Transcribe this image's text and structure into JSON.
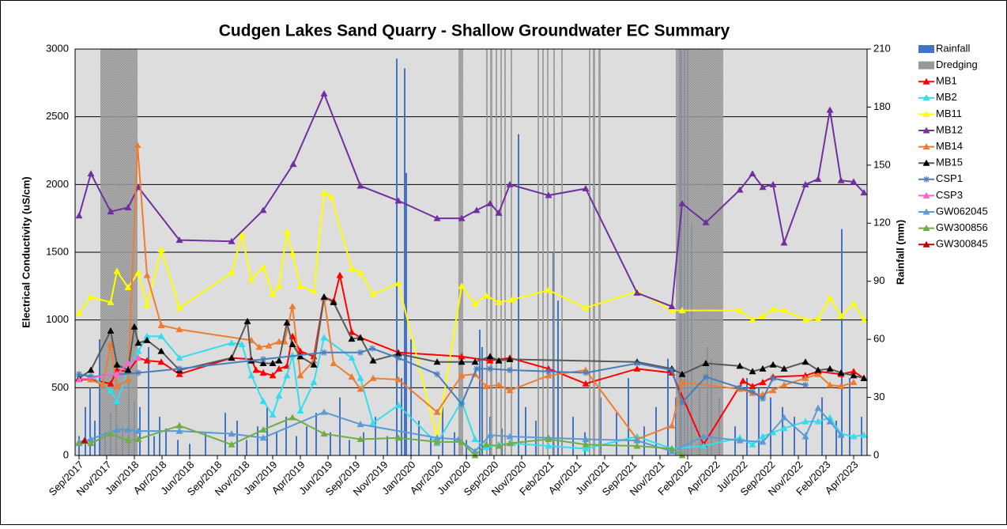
{
  "chart_data": {
    "type": "line",
    "title": "Cudgen Lakes Sand Quarry - Shallow Groundwater EC Summary",
    "y_label": "Electrical Conductivity (uS/cm)",
    "y2_label": "Rainfall (mm)",
    "xlim": [
      -5,
      997
    ],
    "xticks": [
      {
        "value": 0,
        "label": "Sep/2017"
      },
      {
        "value": 35,
        "label": "Nov/2017"
      },
      {
        "value": 70,
        "label": "Jan/2018"
      },
      {
        "value": 105,
        "label": "Apr/2018"
      },
      {
        "value": 140,
        "label": "Jun/2018"
      },
      {
        "value": 175,
        "label": "Sep/2018"
      },
      {
        "value": 210,
        "label": "Nov/2018"
      },
      {
        "value": 245,
        "label": "Jan/2019"
      },
      {
        "value": 280,
        "label": "Apr/2019"
      },
      {
        "value": 315,
        "label": "Jun/2019"
      },
      {
        "value": 350,
        "label": "Sep/2019"
      },
      {
        "value": 385,
        "label": "Nov/2019"
      },
      {
        "value": 420,
        "label": "Jan/2020"
      },
      {
        "value": 455,
        "label": "Apr/2020"
      },
      {
        "value": 490,
        "label": "Jun/2020"
      },
      {
        "value": 525,
        "label": "Sep/2020"
      },
      {
        "value": 560,
        "label": "Nov/2020"
      },
      {
        "value": 595,
        "label": "Feb/2021"
      },
      {
        "value": 630,
        "label": "Apr/2021"
      },
      {
        "value": 665,
        "label": "Jun/2021"
      },
      {
        "value": 700,
        "label": "Sep/2021"
      },
      {
        "value": 735,
        "label": "Nov/2021"
      },
      {
        "value": 770,
        "label": "Feb/2022"
      },
      {
        "value": 805,
        "label": "Apr/2022"
      },
      {
        "value": 840,
        "label": "Jul/2022"
      },
      {
        "value": 875,
        "label": "Sep/2022"
      },
      {
        "value": 910,
        "label": "Nov/2022"
      },
      {
        "value": 945,
        "label": "Feb/2023"
      },
      {
        "value": 980,
        "label": "Apr/2023"
      }
    ],
    "ylim": [
      0,
      3000
    ],
    "yticks": [
      0,
      500,
      1000,
      1500,
      2000,
      2500,
      3000
    ],
    "y2lim": [
      0,
      210
    ],
    "y2ticks": [
      0,
      30,
      60,
      90,
      120,
      150,
      180,
      210
    ],
    "grid": true,
    "series": [
      {
        "name": "Rainfall",
        "type": "bar",
        "axis": "y2",
        "color": "#4472c4",
        "x": [
          0,
          8,
          14,
          20,
          26,
          33,
          40,
          47,
          55,
          63,
          70,
          77,
          88,
          95,
          102,
          110,
          125,
          140,
          160,
          185,
          200,
          212,
          226,
          238,
          250,
          262,
          275,
          288,
          300,
          318,
          330,
          342,
          360,
          375,
          390,
          402,
          408,
          412,
          414,
          420,
          430,
          445,
          460,
          475,
          490,
          507,
          510,
          520,
          535,
          556,
          565,
          578,
          600,
          606,
          611,
          625,
          640,
          660,
          680,
          695,
          715,
          730,
          745,
          755,
          760,
          762,
          766,
          770,
          775,
          785,
          795,
          800,
          810,
          830,
          845,
          860,
          875,
          890,
          905,
          920,
          940,
          958,
          965,
          975,
          990
        ],
        "values": [
          10,
          25,
          35,
          18,
          60,
          12,
          22,
          30,
          15,
          40,
          28,
          25,
          56,
          10,
          20,
          14,
          8,
          6,
          12,
          22,
          18,
          8,
          15,
          25,
          12,
          20,
          10,
          15,
          22,
          12,
          30,
          8,
          12,
          20,
          10,
          205,
          40,
          200,
          146,
          60,
          18,
          10,
          25,
          12,
          8,
          65,
          56,
          20,
          14,
          166,
          25,
          18,
          105,
          80,
          66,
          20,
          12,
          30,
          22,
          40,
          15,
          25,
          50,
          30,
          210,
          210,
          210,
          210,
          120,
          35,
          56,
          50,
          30,
          15,
          40,
          35,
          30,
          25,
          20,
          12,
          30,
          18,
          117,
          40,
          20
        ]
      },
      {
        "name": "Dredging",
        "type": "span",
        "color": "#9a9a9a",
        "spans": [
          [
            27,
            74
          ],
          [
            480,
            486
          ],
          [
            515,
            517
          ],
          [
            520,
            523
          ],
          [
            527,
            529
          ],
          [
            533,
            535
          ],
          [
            538,
            540
          ],
          [
            546,
            548
          ],
          [
            580,
            582
          ],
          [
            586,
            588
          ],
          [
            592,
            594
          ],
          [
            600,
            602
          ],
          [
            610,
            612
          ],
          [
            645,
            647
          ],
          [
            650,
            653
          ],
          [
            657,
            660
          ],
          [
            755,
            815
          ]
        ]
      },
      {
        "name": "MB1",
        "color": "#ff0000",
        "marker": "triangle",
        "x": [
          0,
          15,
          40,
          48,
          62,
          75,
          86,
          104,
          127,
          193,
          218,
          224,
          233,
          245,
          253,
          263,
          270,
          280,
          297,
          310,
          322,
          330,
          345,
          356,
          404,
          484,
          520,
          545,
          594,
          641,
          706,
          750,
          790,
          840,
          852,
          865,
          878,
          919,
          935,
          964,
          980,
          993
        ],
        "values": [
          560,
          560,
          530,
          630,
          620,
          720,
          700,
          690,
          600,
          720,
          710,
          630,
          610,
          590,
          640,
          660,
          880,
          770,
          730,
          1170,
          1140,
          1330,
          910,
          870,
          760,
          730,
          700,
          720,
          640,
          530,
          640,
          610,
          80,
          550,
          510,
          540,
          580,
          590,
          620,
          600,
          620,
          570
        ]
      },
      {
        "name": "MB2",
        "color": "#33ddee",
        "marker": "triangle",
        "x": [
          0,
          15,
          40,
          48,
          62,
          75,
          86,
          104,
          127,
          193,
          206,
          218,
          233,
          245,
          253,
          263,
          270,
          280,
          297,
          310,
          345,
          356,
          372,
          404,
          453,
          484,
          501,
          515,
          531,
          548,
          594,
          641,
          706,
          750,
          790,
          836,
          852,
          865,
          878,
          892,
          919,
          935,
          950,
          964,
          980,
          993
        ],
        "values": [
          600,
          590,
          480,
          400,
          630,
          770,
          880,
          880,
          720,
          830,
          820,
          590,
          400,
          300,
          440,
          590,
          740,
          330,
          540,
          870,
          720,
          570,
          240,
          370,
          90,
          400,
          120,
          60,
          80,
          90,
          70,
          50,
          140,
          50,
          70,
          130,
          80,
          140,
          170,
          200,
          250,
          250,
          280,
          160,
          140,
          150
        ]
      },
      {
        "name": "MB11",
        "color": "#ffff00",
        "marker": "triangle",
        "x": [
          0,
          15,
          40,
          48,
          62,
          75,
          86,
          104,
          127,
          193,
          206,
          218,
          233,
          245,
          253,
          263,
          270,
          280,
          297,
          310,
          319,
          345,
          356,
          372,
          404,
          453,
          484,
          501,
          515,
          531,
          548,
          594,
          641,
          706,
          750,
          763,
          836,
          852,
          865,
          878,
          892,
          919,
          935,
          950,
          964,
          980,
          993
        ],
        "values": [
          1050,
          1170,
          1130,
          1360,
          1240,
          1350,
          1110,
          1520,
          1090,
          1350,
          1630,
          1300,
          1390,
          1190,
          1250,
          1650,
          1490,
          1250,
          1210,
          1940,
          1910,
          1380,
          1350,
          1190,
          1270,
          130,
          1250,
          1120,
          1180,
          1130,
          1150,
          1220,
          1090,
          1210,
          1070,
          1070,
          1070,
          1000,
          1030,
          1080,
          1070,
          1000,
          1010,
          1160,
          1030,
          1120,
          1000
        ]
      },
      {
        "name": "MB12",
        "color": "#7030a0",
        "marker": "triangle",
        "x": [
          0,
          15,
          40,
          62,
          75,
          127,
          193,
          233,
          271,
          310,
          356,
          404,
          453,
          484,
          503,
          520,
          531,
          545,
          594,
          641,
          706,
          750,
          763,
          793,
          836,
          852,
          865,
          878,
          892,
          919,
          935,
          950,
          964,
          980,
          993
        ],
        "values": [
          1770,
          2080,
          1800,
          1830,
          1980,
          1590,
          1580,
          1810,
          2150,
          2670,
          1990,
          1880,
          1750,
          1750,
          1810,
          1860,
          1790,
          2000,
          1920,
          1970,
          1200,
          1100,
          1860,
          1720,
          1960,
          2080,
          1980,
          2000,
          1570,
          2000,
          2040,
          2550,
          2030,
          2020,
          1940
        ]
      },
      {
        "name": "MB14",
        "color": "#ed7d31",
        "marker": "triangle",
        "x": [
          0,
          15,
          30,
          40,
          48,
          62,
          74,
          86,
          104,
          127,
          218,
          228,
          240,
          253,
          260,
          270,
          280,
          297,
          310,
          322,
          345,
          356,
          372,
          404,
          453,
          484,
          501,
          515,
          531,
          545,
          594,
          641,
          706,
          750,
          763,
          836,
          852,
          865,
          878,
          892,
          919,
          935,
          950,
          964,
          980
        ],
        "values": [
          570,
          560,
          520,
          820,
          510,
          560,
          2290,
          1330,
          960,
          930,
          850,
          800,
          810,
          840,
          840,
          1100,
          590,
          700,
          1160,
          680,
          580,
          490,
          570,
          560,
          320,
          590,
          600,
          510,
          520,
          480,
          590,
          630,
          120,
          220,
          540,
          490,
          460,
          450,
          480,
          520,
          570,
          600,
          520,
          510,
          540
        ]
      },
      {
        "name": "MB15",
        "color": "#595959",
        "marker_color": "#000000",
        "marker": "triangle",
        "x": [
          0,
          15,
          40,
          48,
          62,
          70,
          75,
          86,
          104,
          127,
          193,
          213,
          218,
          233,
          245,
          253,
          263,
          270,
          280,
          297,
          310,
          322,
          345,
          356,
          372,
          404,
          453,
          484,
          501,
          520,
          531,
          545,
          706,
          750,
          763,
          793,
          836,
          852,
          865,
          878,
          892,
          919,
          935,
          950,
          964,
          980,
          993
        ],
        "values": [
          570,
          630,
          920,
          670,
          630,
          950,
          830,
          850,
          770,
          630,
          720,
          990,
          700,
          680,
          680,
          700,
          980,
          820,
          730,
          670,
          1170,
          1130,
          860,
          870,
          700,
          750,
          690,
          690,
          690,
          730,
          700,
          710,
          690,
          640,
          600,
          680,
          660,
          620,
          640,
          670,
          640,
          690,
          630,
          640,
          610,
          590,
          570
        ]
      },
      {
        "name": "CSP1",
        "color": "#4a7ebb",
        "marker": "star",
        "x": [
          0,
          15,
          75,
          127,
          233,
          310,
          356,
          371,
          404,
          453,
          484,
          503,
          520,
          545,
          594,
          641,
          706,
          750,
          763,
          793,
          836,
          852,
          865,
          878,
          919
        ],
        "values": [
          600,
          580,
          610,
          640,
          710,
          760,
          760,
          790,
          720,
          600,
          380,
          640,
          640,
          630,
          620,
          610,
          680,
          630,
          390,
          580,
          500,
          470,
          420,
          570,
          520
        ]
      },
      {
        "name": "CSP3",
        "color": "#ff66cc",
        "marker": "triangle",
        "x": [
          0,
          48,
          62,
          75
        ],
        "values": [
          560,
          600,
          680,
          720
        ]
      },
      {
        "name": "GW062045",
        "color": "#5b9bd5",
        "marker": "triangle",
        "x": [
          0,
          15,
          48,
          62,
          75,
          127,
          193,
          233,
          310,
          356,
          453,
          480,
          501,
          520,
          545,
          594,
          641,
          706,
          750,
          790,
          836,
          865,
          892,
          919,
          935,
          950,
          964
        ],
        "values": [
          100,
          120,
          190,
          190,
          180,
          180,
          160,
          130,
          320,
          230,
          130,
          120,
          30,
          150,
          140,
          130,
          120,
          110,
          30,
          140,
          110,
          100,
          280,
          140,
          350,
          250,
          150
        ]
      },
      {
        "name": "GW300856",
        "color": "#70ad47",
        "marker": "triangle",
        "x": [
          0,
          15,
          40,
          62,
          75,
          127,
          193,
          233,
          270,
          310,
          356,
          404,
          453,
          484,
          501,
          515,
          531,
          545,
          594,
          641,
          706,
          750,
          763
        ],
        "values": [
          90,
          90,
          160,
          110,
          120,
          220,
          80,
          190,
          280,
          160,
          120,
          130,
          100,
          100,
          0,
          80,
          70,
          90,
          120,
          80,
          70,
          50,
          0
        ]
      },
      {
        "name": "GW300845",
        "color": "#c00000",
        "marker": "triangle",
        "x": [
          7
        ],
        "values": [
          110
        ]
      }
    ]
  }
}
